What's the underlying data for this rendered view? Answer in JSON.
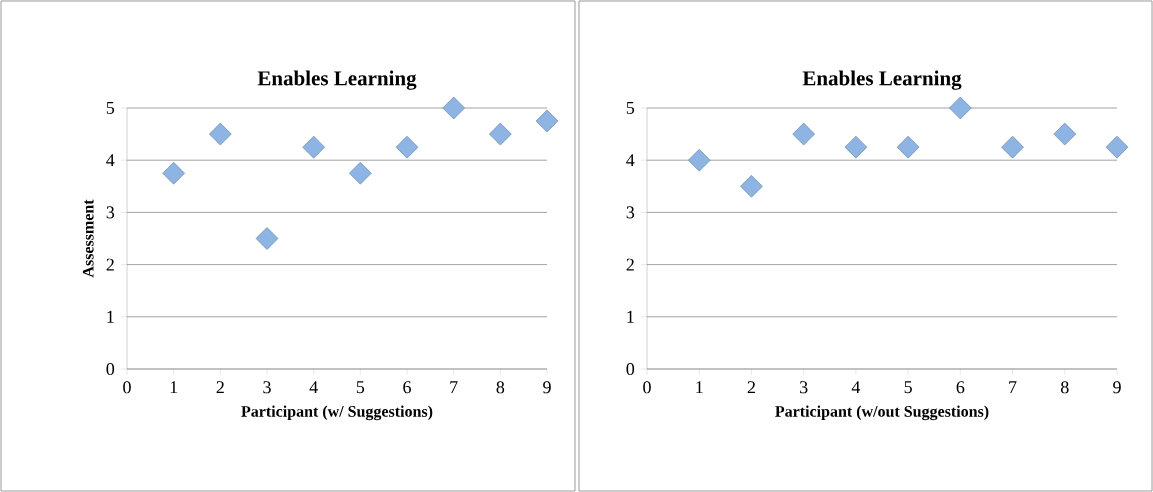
{
  "chart_data": [
    {
      "type": "scatter",
      "title": "Enables Learning",
      "xlabel": "Participant (w/ Suggestions)",
      "ylabel": "Assessment",
      "x": [
        1,
        2,
        3,
        4,
        5,
        6,
        7,
        8,
        9
      ],
      "series": [
        {
          "color": "#8db4e2",
          "values": [
            3.75,
            4.5,
            2.5,
            4.25,
            3.75,
            4.25,
            5,
            4.5,
            4.75
          ]
        }
      ],
      "xlim": [
        0,
        9
      ],
      "ylim": [
        0,
        5
      ],
      "xticks": [
        0,
        1,
        2,
        3,
        4,
        5,
        6,
        7,
        8,
        9
      ],
      "yticks": [
        0,
        1,
        2,
        3,
        4,
        5
      ],
      "grid": "y",
      "marker": "diamond"
    },
    {
      "type": "scatter",
      "title": "Enables Learning",
      "xlabel": "Participant (w/out Suggestions)",
      "x": [
        1,
        2,
        3,
        4,
        5,
        6,
        7,
        8,
        9
      ],
      "series": [
        {
          "color": "#8db4e2",
          "values": [
            4,
            3.5,
            4.5,
            4.25,
            4.25,
            5,
            4.25,
            4.5,
            4.25
          ]
        }
      ],
      "xlim": [
        0,
        9
      ],
      "ylim": [
        0,
        5
      ],
      "xticks": [
        0,
        1,
        2,
        3,
        4,
        5,
        6,
        7,
        8,
        9
      ],
      "yticks": [
        0,
        1,
        2,
        3,
        4,
        5
      ],
      "grid": "y",
      "marker": "diamond"
    }
  ]
}
